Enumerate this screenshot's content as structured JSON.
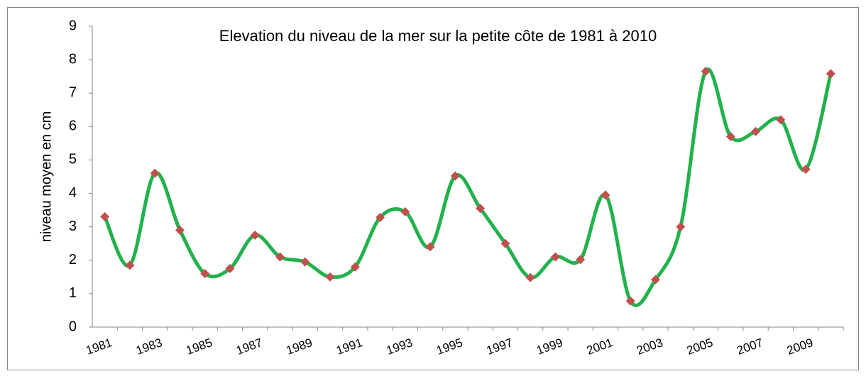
{
  "chart_data": {
    "type": "line",
    "title": "Elevation du niveau de la mer sur la petite côte de 1981 à 2010",
    "y_label": "niveau moyen en cm",
    "categories": [
      "1981",
      null,
      "1983",
      null,
      "1985",
      null,
      "1987",
      null,
      "1989",
      null,
      "1991",
      null,
      "1993",
      null,
      "1995",
      null,
      "1997",
      null,
      "1999",
      null,
      "2001",
      null,
      "2003",
      null,
      "2005",
      null,
      "2007",
      null,
      "2009",
      null
    ],
    "series": [
      {
        "name": "niveau",
        "color": "#22b14c",
        "marker_color": "#c0504d",
        "values": [
          3.3,
          1.85,
          4.6,
          2.9,
          1.6,
          1.75,
          2.75,
          2.1,
          1.95,
          1.5,
          1.8,
          3.28,
          3.45,
          2.4,
          4.52,
          3.55,
          2.5,
          1.48,
          2.1,
          2.02,
          3.95,
          0.78,
          1.42,
          3.0,
          7.65,
          5.7,
          5.85,
          6.2,
          4.72,
          7.58
        ]
      }
    ],
    "ylim": [
      0,
      9
    ],
    "yticks": [
      0,
      1,
      2,
      3,
      4,
      5,
      6,
      7,
      8,
      9
    ],
    "grid": false,
    "smooth": true
  }
}
